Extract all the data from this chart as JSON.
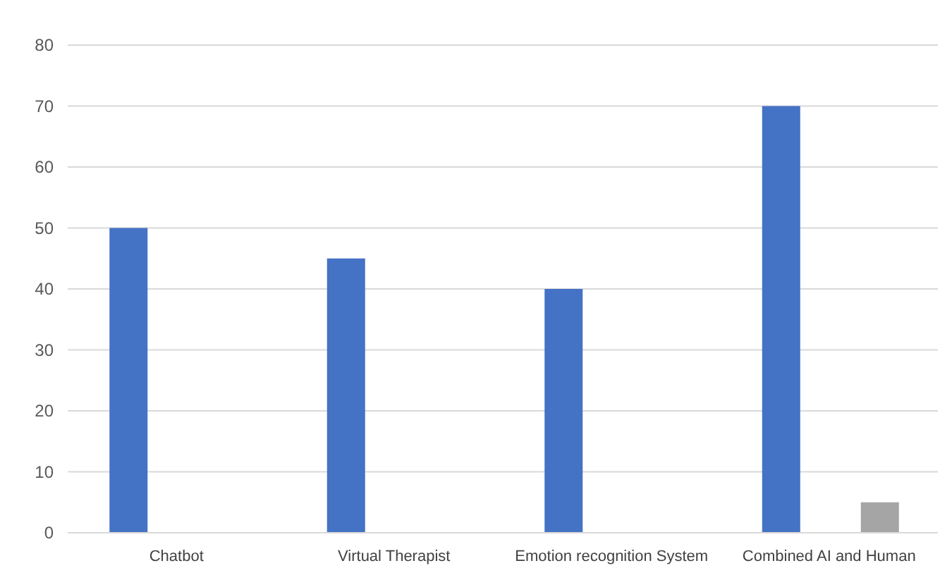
{
  "chart_data": {
    "type": "bar",
    "categories": [
      "Chatbot",
      "Virtual Therapist",
      "Emotion recognition System",
      "Combined AI and Human"
    ],
    "series": [
      {
        "color": "#4472c4",
        "values": [
          50,
          45,
          40,
          70
        ]
      },
      {
        "color": "#a5a5a5",
        "values": [
          null,
          null,
          null,
          5
        ]
      }
    ],
    "ylim": [
      0,
      80
    ],
    "yticks": [
      0,
      10,
      20,
      30,
      40,
      50,
      60,
      70,
      80
    ],
    "grid": "y"
  }
}
